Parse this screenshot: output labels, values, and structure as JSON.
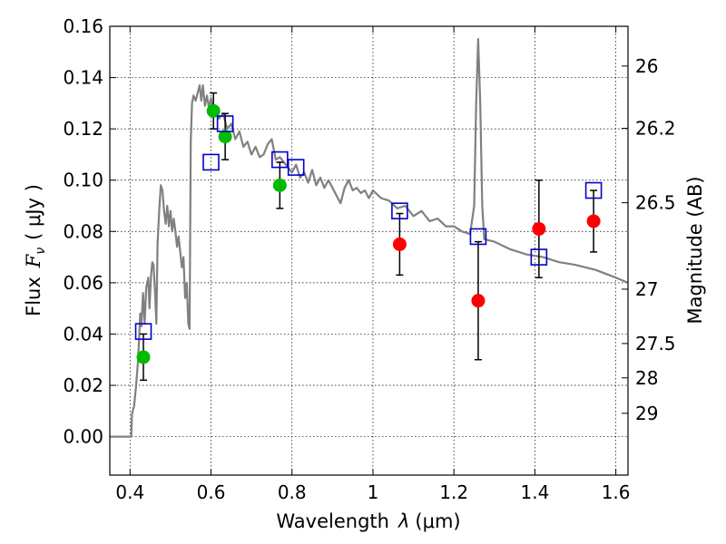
{
  "chart_data": {
    "type": "scatter",
    "xlabel_prefix": "Wavelength",
    "xlabel_symbol": "λ",
    "xlabel_unit": "(μm)",
    "ylabel_prefix": "Flux",
    "ylabel_symbol": "F",
    "ylabel_subscript": "ν",
    "ylabel_unit": "( μJy )",
    "y2label": "Magnitude (AB)",
    "xlim": [
      0.35,
      1.63
    ],
    "ylim": [
      -0.015,
      0.16
    ],
    "grid": true,
    "x_ticks": [
      0.4,
      0.6,
      0.8,
      1.0,
      1.2,
      1.4,
      1.6
    ],
    "x_tick_labels": [
      "0.4",
      "0.6",
      "0.8",
      "1",
      "1.2",
      "1.4",
      "1.6"
    ],
    "y_ticks": [
      0.0,
      0.02,
      0.04,
      0.06,
      0.08,
      0.1,
      0.12,
      0.14,
      0.16
    ],
    "y_tick_labels": [
      "0.00",
      "0.02",
      "0.04",
      "0.06",
      "0.08",
      "0.10",
      "0.12",
      "0.14",
      "0.16"
    ],
    "mag_ticks": [
      {
        "label": "26",
        "flux": 0.1445
      },
      {
        "label": "26.2",
        "flux": 0.1202
      },
      {
        "label": "26.5",
        "flux": 0.0912
      },
      {
        "label": "27",
        "flux": 0.0575
      },
      {
        "label": "27.5",
        "flux": 0.0363
      },
      {
        "label": "28",
        "flux": 0.0229
      },
      {
        "label": "29",
        "flux": 0.0091
      }
    ],
    "colors": {
      "model": "#808080",
      "detected": "#00bb00",
      "upper": "#ff0000",
      "synthetic": "#0000cc",
      "errorbar": "#000000"
    },
    "series": [
      {
        "name": "model spectrum",
        "kind": "line",
        "points": [
          [
            0.35,
            0.0
          ],
          [
            0.403,
            0.0
          ],
          [
            0.405,
            0.009
          ],
          [
            0.41,
            0.012
          ],
          [
            0.415,
            0.02
          ],
          [
            0.42,
            0.03
          ],
          [
            0.425,
            0.048
          ],
          [
            0.428,
            0.043
          ],
          [
            0.432,
            0.056
          ],
          [
            0.436,
            0.044
          ],
          [
            0.44,
            0.058
          ],
          [
            0.445,
            0.062
          ],
          [
            0.448,
            0.05
          ],
          [
            0.452,
            0.063
          ],
          [
            0.455,
            0.068
          ],
          [
            0.458,
            0.067
          ],
          [
            0.462,
            0.055
          ],
          [
            0.465,
            0.044
          ],
          [
            0.468,
            0.075
          ],
          [
            0.472,
            0.088
          ],
          [
            0.476,
            0.098
          ],
          [
            0.48,
            0.096
          ],
          [
            0.484,
            0.088
          ],
          [
            0.488,
            0.083
          ],
          [
            0.492,
            0.09
          ],
          [
            0.496,
            0.082
          ],
          [
            0.5,
            0.088
          ],
          [
            0.504,
            0.08
          ],
          [
            0.508,
            0.085
          ],
          [
            0.512,
            0.08
          ],
          [
            0.516,
            0.074
          ],
          [
            0.52,
            0.078
          ],
          [
            0.524,
            0.072
          ],
          [
            0.528,
            0.066
          ],
          [
            0.532,
            0.07
          ],
          [
            0.536,
            0.054
          ],
          [
            0.54,
            0.06
          ],
          [
            0.544,
            0.044
          ],
          [
            0.547,
            0.042
          ],
          [
            0.55,
            0.115
          ],
          [
            0.553,
            0.13
          ],
          [
            0.557,
            0.133
          ],
          [
            0.562,
            0.131
          ],
          [
            0.567,
            0.134
          ],
          [
            0.572,
            0.137
          ],
          [
            0.576,
            0.131
          ],
          [
            0.58,
            0.137
          ],
          [
            0.585,
            0.129
          ],
          [
            0.59,
            0.133
          ],
          [
            0.595,
            0.128
          ],
          [
            0.6,
            0.132
          ],
          [
            0.605,
            0.126
          ],
          [
            0.61,
            0.128
          ],
          [
            0.62,
            0.124
          ],
          [
            0.63,
            0.126
          ],
          [
            0.64,
            0.12
          ],
          [
            0.65,
            0.122
          ],
          [
            0.66,
            0.116
          ],
          [
            0.67,
            0.119
          ],
          [
            0.68,
            0.113
          ],
          [
            0.69,
            0.115
          ],
          [
            0.7,
            0.11
          ],
          [
            0.71,
            0.113
          ],
          [
            0.72,
            0.109
          ],
          [
            0.73,
            0.11
          ],
          [
            0.74,
            0.114
          ],
          [
            0.75,
            0.116
          ],
          [
            0.76,
            0.108
          ],
          [
            0.77,
            0.109
          ],
          [
            0.78,
            0.107
          ],
          [
            0.79,
            0.105
          ],
          [
            0.8,
            0.103
          ],
          [
            0.81,
            0.106
          ],
          [
            0.82,
            0.101
          ],
          [
            0.83,
            0.103
          ],
          [
            0.84,
            0.099
          ],
          [
            0.85,
            0.104
          ],
          [
            0.86,
            0.098
          ],
          [
            0.87,
            0.101
          ],
          [
            0.88,
            0.097
          ],
          [
            0.89,
            0.1
          ],
          [
            0.9,
            0.097
          ],
          [
            0.91,
            0.094
          ],
          [
            0.92,
            0.091
          ],
          [
            0.93,
            0.097
          ],
          [
            0.94,
            0.1
          ],
          [
            0.95,
            0.096
          ],
          [
            0.96,
            0.097
          ],
          [
            0.97,
            0.095
          ],
          [
            0.98,
            0.096
          ],
          [
            0.99,
            0.093
          ],
          [
            1.0,
            0.096
          ],
          [
            1.02,
            0.093
          ],
          [
            1.04,
            0.092
          ],
          [
            1.06,
            0.089
          ],
          [
            1.08,
            0.09
          ],
          [
            1.1,
            0.086
          ],
          [
            1.12,
            0.088
          ],
          [
            1.14,
            0.084
          ],
          [
            1.16,
            0.085
          ],
          [
            1.18,
            0.082
          ],
          [
            1.2,
            0.082
          ],
          [
            1.22,
            0.08
          ],
          [
            1.24,
            0.079
          ],
          [
            1.25,
            0.09
          ],
          [
            1.255,
            0.13
          ],
          [
            1.26,
            0.155
          ],
          [
            1.265,
            0.13
          ],
          [
            1.27,
            0.09
          ],
          [
            1.275,
            0.077
          ],
          [
            1.3,
            0.076
          ],
          [
            1.34,
            0.073
          ],
          [
            1.38,
            0.071
          ],
          [
            1.42,
            0.07
          ],
          [
            1.46,
            0.068
          ],
          [
            1.5,
            0.067
          ],
          [
            1.55,
            0.065
          ],
          [
            1.6,
            0.062
          ],
          [
            1.63,
            0.06
          ]
        ]
      },
      {
        "name": "synthetic photometry",
        "kind": "open-square",
        "points": [
          [
            0.433,
            0.041
          ],
          [
            0.6,
            0.107
          ],
          [
            0.635,
            0.122
          ],
          [
            0.77,
            0.108
          ],
          [
            0.81,
            0.105
          ],
          [
            1.066,
            0.088
          ],
          [
            1.26,
            0.078
          ],
          [
            1.41,
            0.07
          ],
          [
            1.545,
            0.096
          ]
        ]
      },
      {
        "name": "detected",
        "kind": "filled-circle",
        "points": [
          [
            0.433,
            0.031,
            0.009
          ],
          [
            0.606,
            0.127,
            0.007
          ],
          [
            0.635,
            0.117,
            0.009
          ],
          [
            0.77,
            0.098,
            0.009
          ]
        ]
      },
      {
        "name": "marginal",
        "kind": "filled-circle",
        "points": [
          [
            1.066,
            0.075,
            0.012
          ],
          [
            1.26,
            0.053,
            0.023
          ],
          [
            1.41,
            0.081,
            0.019
          ],
          [
            1.545,
            0.084,
            0.012
          ]
        ]
      }
    ]
  }
}
